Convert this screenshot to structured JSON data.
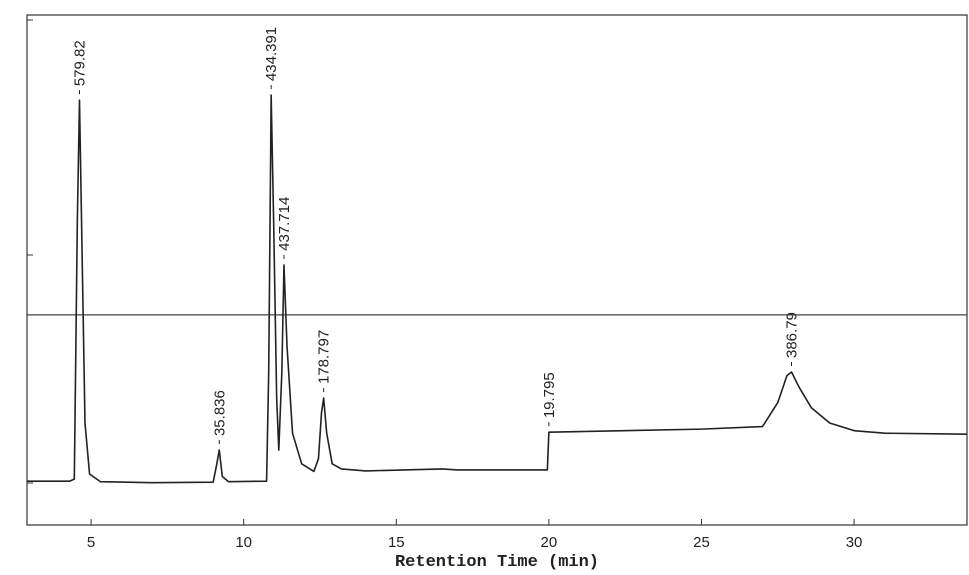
{
  "chart_data": {
    "type": "line",
    "x_label": "Retention Time (min)",
    "xlim": [
      2.9,
      33.7
    ],
    "xticks": [
      5,
      10,
      15,
      20,
      25,
      30
    ],
    "ylim": [
      0,
      100
    ],
    "hline": 41.2,
    "color": "#222222",
    "x": [
      2.9,
      4.3,
      4.45,
      4.55,
      4.62,
      4.7,
      4.8,
      4.95,
      5.3,
      7,
      9.0,
      9.12,
      9.2,
      9.3,
      9.5,
      10.75,
      10.82,
      10.9,
      10.98,
      11.08,
      11.15,
      11.25,
      11.32,
      11.42,
      11.6,
      11.9,
      12.3,
      12.45,
      12.55,
      12.62,
      12.72,
      12.9,
      13.2,
      14,
      16.5,
      17,
      19.95,
      20.0,
      25,
      27,
      27.5,
      27.8,
      27.95,
      28.2,
      28.6,
      29.2,
      30,
      31,
      33.7
    ],
    "values": [
      8.6,
      8.6,
      9,
      60,
      83.3,
      55,
      20,
      10,
      8.5,
      8.3,
      8.4,
      12,
      14.7,
      9.5,
      8.5,
      8.6,
      30,
      84.3,
      60,
      25,
      14.7,
      30,
      51,
      35,
      18,
      12,
      10.5,
      13,
      22,
      24.9,
      18,
      12,
      11,
      10.6,
      11,
      10.8,
      10.8,
      18.2,
      18.8,
      19.3,
      24,
      29.3,
      30,
      27,
      23,
      20,
      18.5,
      18.0,
      17.8
    ],
    "peaks": [
      {
        "x": 4.62,
        "label": "579.82"
      },
      {
        "x": 9.2,
        "label": "35.836"
      },
      {
        "x": 10.9,
        "label": "434.391"
      },
      {
        "x": 11.32,
        "label": "437.714"
      },
      {
        "x": 12.62,
        "label": "178.797"
      },
      {
        "x": 20.0,
        "label": "19.795"
      },
      {
        "x": 27.95,
        "label": "386.79"
      }
    ]
  }
}
